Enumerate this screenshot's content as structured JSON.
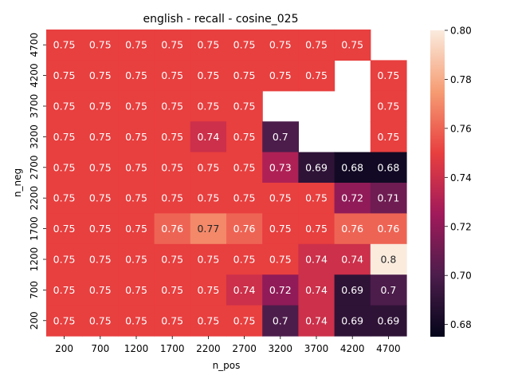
{
  "chart_data": {
    "type": "heatmap",
    "title": "english - recall - cosine_025",
    "xlabel": "n_pos",
    "ylabel": "n_neg",
    "x": [
      "200",
      "700",
      "1200",
      "1700",
      "2200",
      "2700",
      "3200",
      "3700",
      "4200",
      "4700"
    ],
    "y": [
      "4700",
      "4200",
      "3700",
      "3200",
      "2700",
      "2200",
      "1700",
      "1200",
      "700",
      "200"
    ],
    "values": [
      [
        0.75,
        0.75,
        0.75,
        0.75,
        0.75,
        0.75,
        0.75,
        0.75,
        0.75,
        null
      ],
      [
        0.75,
        0.75,
        0.75,
        0.75,
        0.75,
        0.75,
        0.75,
        0.75,
        null,
        0.75
      ],
      [
        0.75,
        0.75,
        0.75,
        0.75,
        0.75,
        0.75,
        null,
        null,
        null,
        0.75
      ],
      [
        0.75,
        0.75,
        0.75,
        0.75,
        0.74,
        0.75,
        0.7,
        null,
        null,
        0.75
      ],
      [
        0.75,
        0.75,
        0.75,
        0.75,
        0.75,
        0.75,
        0.73,
        0.69,
        0.68,
        0.68
      ],
      [
        0.75,
        0.75,
        0.75,
        0.75,
        0.75,
        0.75,
        0.75,
        0.75,
        0.72,
        0.71
      ],
      [
        0.75,
        0.75,
        0.75,
        0.76,
        0.77,
        0.76,
        0.75,
        0.75,
        0.76,
        0.76
      ],
      [
        0.75,
        0.75,
        0.75,
        0.75,
        0.75,
        0.75,
        0.75,
        0.74,
        0.74,
        0.8
      ],
      [
        0.75,
        0.75,
        0.75,
        0.75,
        0.75,
        0.74,
        0.72,
        0.74,
        0.69,
        0.7
      ],
      [
        0.75,
        0.75,
        0.75,
        0.75,
        0.75,
        0.75,
        0.7,
        0.74,
        0.69,
        0.69
      ]
    ],
    "colorbar": {
      "range": [
        0.675,
        0.8
      ],
      "ticks": [
        "0.68",
        "0.70",
        "0.72",
        "0.74",
        "0.76",
        "0.78",
        "0.80"
      ],
      "colormap": "rocket",
      "stops": [
        "#03051a",
        "#4c1d4b",
        "#a11a5b",
        "#e83f3f",
        "#f69c73",
        "#faebdd"
      ]
    },
    "grid": false
  }
}
